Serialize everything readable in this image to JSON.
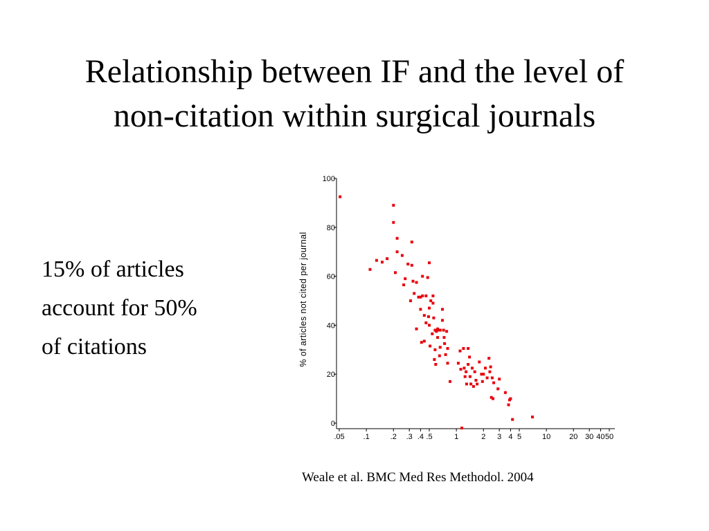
{
  "slide": {
    "title_line1": "Relationship between IF and the level of",
    "title_line2": "non-citation within surgical journals",
    "bullet_line1": "15% of articles",
    "bullet_line2": "account for 50%",
    "bullet_line3": "of citations",
    "citation": "Weale et al. BMC Med Res Methodol. 2004"
  },
  "chart_data": {
    "type": "scatter",
    "title": "",
    "xlabel": "",
    "ylabel": "% of articles not cited per journal",
    "x_scale": "log",
    "xlim": [
      0.05,
      50
    ],
    "ylim": [
      0,
      100
    ],
    "x_ticks": [
      {
        "value": 0.05,
        "label": ".05"
      },
      {
        "value": 0.1,
        "label": ".1"
      },
      {
        "value": 0.2,
        "label": ".2"
      },
      {
        "value": 0.3,
        "label": ".3"
      },
      {
        "value": 0.4,
        "label": ".4"
      },
      {
        "value": 0.5,
        "label": ".5"
      },
      {
        "value": 1,
        "label": "1"
      },
      {
        "value": 2,
        "label": "2"
      },
      {
        "value": 3,
        "label": "3"
      },
      {
        "value": 4,
        "label": "4"
      },
      {
        "value": 5,
        "label": "5"
      },
      {
        "value": 10,
        "label": "10"
      },
      {
        "value": 20,
        "label": "20"
      },
      {
        "value": 30,
        "label": "30"
      },
      {
        "value": 40,
        "label": "40"
      },
      {
        "value": 50,
        "label": "50"
      }
    ],
    "y_ticks": [
      {
        "value": 0,
        "label": "0"
      },
      {
        "value": 20,
        "label": "20"
      },
      {
        "value": 40,
        "label": "40"
      },
      {
        "value": 60,
        "label": "60"
      },
      {
        "value": 80,
        "label": "80"
      },
      {
        "value": 100,
        "label": "100"
      }
    ],
    "marker_color": "#e8000b",
    "grid": false,
    "points": [
      [
        0.051,
        92.5
      ],
      [
        0.11,
        62.8
      ],
      [
        0.13,
        66.5
      ],
      [
        0.15,
        65.8
      ],
      [
        0.17,
        67.2
      ],
      [
        0.2,
        89.0
      ],
      [
        0.2,
        82.0
      ],
      [
        0.21,
        61.5
      ],
      [
        0.22,
        75.5
      ],
      [
        0.22,
        70.0
      ],
      [
        0.25,
        68.5
      ],
      [
        0.26,
        56.5
      ],
      [
        0.27,
        59.0
      ],
      [
        0.29,
        65.0
      ],
      [
        0.31,
        50.0
      ],
      [
        0.32,
        74.0
      ],
      [
        0.32,
        64.5
      ],
      [
        0.33,
        58.0
      ],
      [
        0.34,
        53.0
      ],
      [
        0.36,
        38.5
      ],
      [
        0.36,
        57.5
      ],
      [
        0.38,
        51.5
      ],
      [
        0.4,
        51.5
      ],
      [
        0.4,
        46.5
      ],
      [
        0.41,
        33.0
      ],
      [
        0.42,
        60.0
      ],
      [
        0.42,
        52.0
      ],
      [
        0.44,
        33.5
      ],
      [
        0.44,
        44.0
      ],
      [
        0.46,
        41.0
      ],
      [
        0.46,
        52.0
      ],
      [
        0.48,
        59.5
      ],
      [
        0.49,
        43.5
      ],
      [
        0.5,
        65.5
      ],
      [
        0.5,
        47.0
      ],
      [
        0.5,
        40.0
      ],
      [
        0.51,
        31.5
      ],
      [
        0.52,
        50.0
      ],
      [
        0.54,
        36.5
      ],
      [
        0.55,
        52.0
      ],
      [
        0.55,
        49.0
      ],
      [
        0.56,
        43.0
      ],
      [
        0.57,
        26.0
      ],
      [
        0.58,
        38.0
      ],
      [
        0.58,
        30.0
      ],
      [
        0.59,
        24.0
      ],
      [
        0.6,
        37.5
      ],
      [
        0.62,
        38.5
      ],
      [
        0.62,
        35.0
      ],
      [
        0.64,
        38.0
      ],
      [
        0.65,
        27.5
      ],
      [
        0.66,
        38.0
      ],
      [
        0.66,
        31.0
      ],
      [
        0.7,
        46.5
      ],
      [
        0.7,
        42.0
      ],
      [
        0.72,
        38.0
      ],
      [
        0.73,
        35.0
      ],
      [
        0.74,
        32.5
      ],
      [
        0.76,
        28.0
      ],
      [
        0.78,
        37.5
      ],
      [
        0.8,
        30.5
      ],
      [
        0.8,
        24.5
      ],
      [
        0.85,
        17.0
      ],
      [
        1.05,
        24.5
      ],
      [
        1.1,
        29.5
      ],
      [
        1.12,
        22.0
      ],
      [
        1.15,
        -2.0
      ],
      [
        1.2,
        30.5
      ],
      [
        1.22,
        22.5
      ],
      [
        1.25,
        19.0
      ],
      [
        1.28,
        21.0
      ],
      [
        1.3,
        16.0
      ],
      [
        1.35,
        30.5
      ],
      [
        1.35,
        24.0
      ],
      [
        1.4,
        27.0
      ],
      [
        1.42,
        19.0
      ],
      [
        1.45,
        16.0
      ],
      [
        1.5,
        22.5
      ],
      [
        1.55,
        15.0
      ],
      [
        1.6,
        21.0
      ],
      [
        1.65,
        17.5
      ],
      [
        1.7,
        16.0
      ],
      [
        1.8,
        25.0
      ],
      [
        1.9,
        20.0
      ],
      [
        1.95,
        17.0
      ],
      [
        2.0,
        20.0
      ],
      [
        2.1,
        22.5
      ],
      [
        2.2,
        18.5
      ],
      [
        2.3,
        26.5
      ],
      [
        2.35,
        21.0
      ],
      [
        2.4,
        23.0
      ],
      [
        2.45,
        10.5
      ],
      [
        2.5,
        18.5
      ],
      [
        2.55,
        10.0
      ],
      [
        2.6,
        16.5
      ],
      [
        2.9,
        14.0
      ],
      [
        3.0,
        18.0
      ],
      [
        3.5,
        12.5
      ],
      [
        3.8,
        7.5
      ],
      [
        3.9,
        9.5
      ],
      [
        4.0,
        10.0
      ],
      [
        4.2,
        1.5
      ],
      [
        7.0,
        2.5
      ]
    ]
  }
}
